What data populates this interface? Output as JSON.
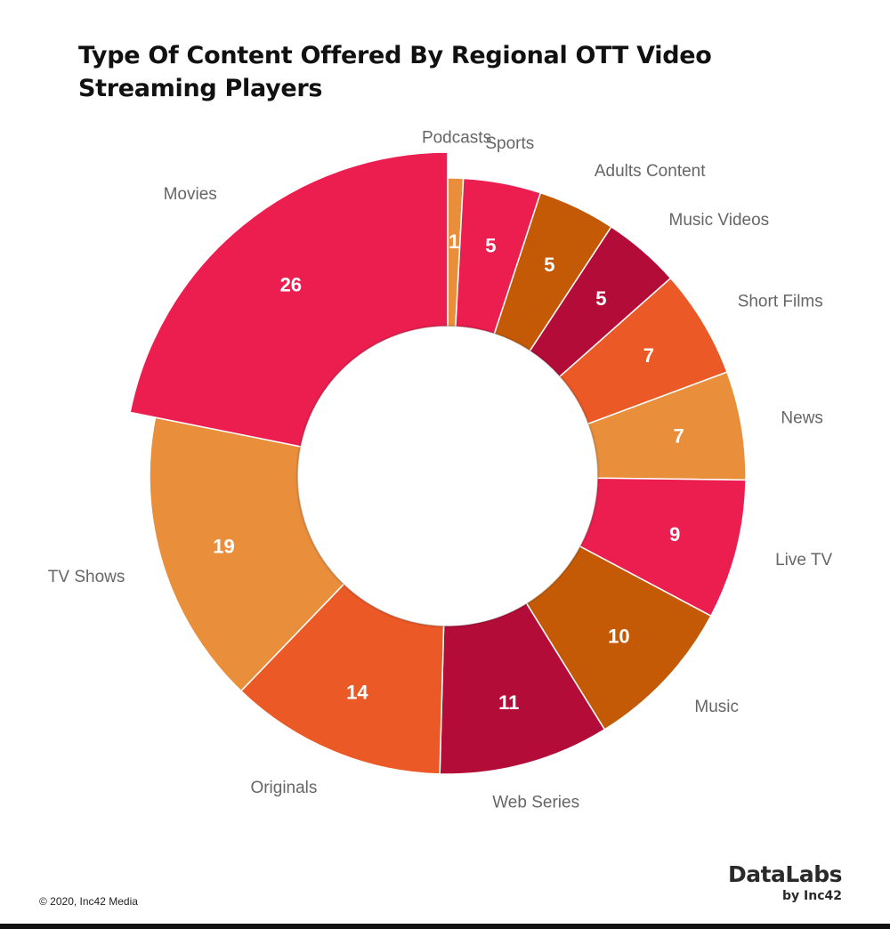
{
  "chart_data": {
    "type": "pie",
    "title": "Type Of Content Offered By Regional OTT Video Streaming Players",
    "categories": [
      "Podcasts",
      "Sports",
      "Adults Content",
      "Music Videos",
      "Short Films",
      "News",
      "Live TV",
      "Music",
      "Web Series",
      "Originals",
      "TV Shows",
      "Movies"
    ],
    "values": [
      1,
      5,
      5,
      5,
      7,
      7,
      9,
      10,
      11,
      14,
      19,
      26
    ],
    "colors": [
      "#E98E3A",
      "#EC1E4F",
      "#C45A05",
      "#B40C38",
      "#EA5926",
      "#E98E3A",
      "#EC1E4F",
      "#C45A05",
      "#B40C38",
      "#EA5926",
      "#E98E3A",
      "#EC1E4F"
    ],
    "highlighted": "Movies",
    "xlabel": "",
    "ylabel": ""
  },
  "footer": {
    "copyright": "© 2020, Inc42 Media",
    "brand": "DataLabs",
    "brand_sub": "by Inc42"
  }
}
